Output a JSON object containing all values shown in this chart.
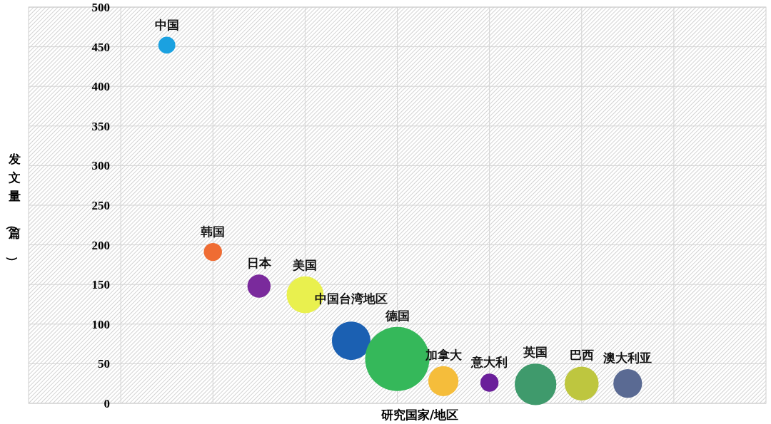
{
  "chart_data": {
    "type": "bubble",
    "xlabel": "研究国家/地区",
    "ylabel": "发文量（篇）",
    "categories": [
      "中国",
      "韩国",
      "日本",
      "美国",
      "中国台湾地区",
      "德国",
      "加拿大",
      "意大利",
      "英国",
      "巴西",
      "澳大利亚"
    ],
    "values": [
      452,
      191,
      148,
      137,
      79,
      56,
      28,
      26,
      24,
      25,
      25
    ],
    "sizes": [
      0.07,
      0.08,
      0.13,
      0.33,
      0.36,
      1,
      0.22,
      0.08,
      0.42,
      0.28,
      0.2
    ],
    "colors": [
      "#1ba1e0",
      "#ef6c33",
      "#7a2a9c",
      "#e9f04e",
      "#1b60b2",
      "#35b85a",
      "#f5bd3b",
      "#6a1f9a",
      "#3f9a6c",
      "#bec63f",
      "#5a6a93"
    ],
    "ylim": [
      0,
      500
    ],
    "yticks": [
      0,
      50,
      100,
      150,
      200,
      250,
      300,
      350,
      400,
      450,
      500
    ],
    "grid": true
  }
}
